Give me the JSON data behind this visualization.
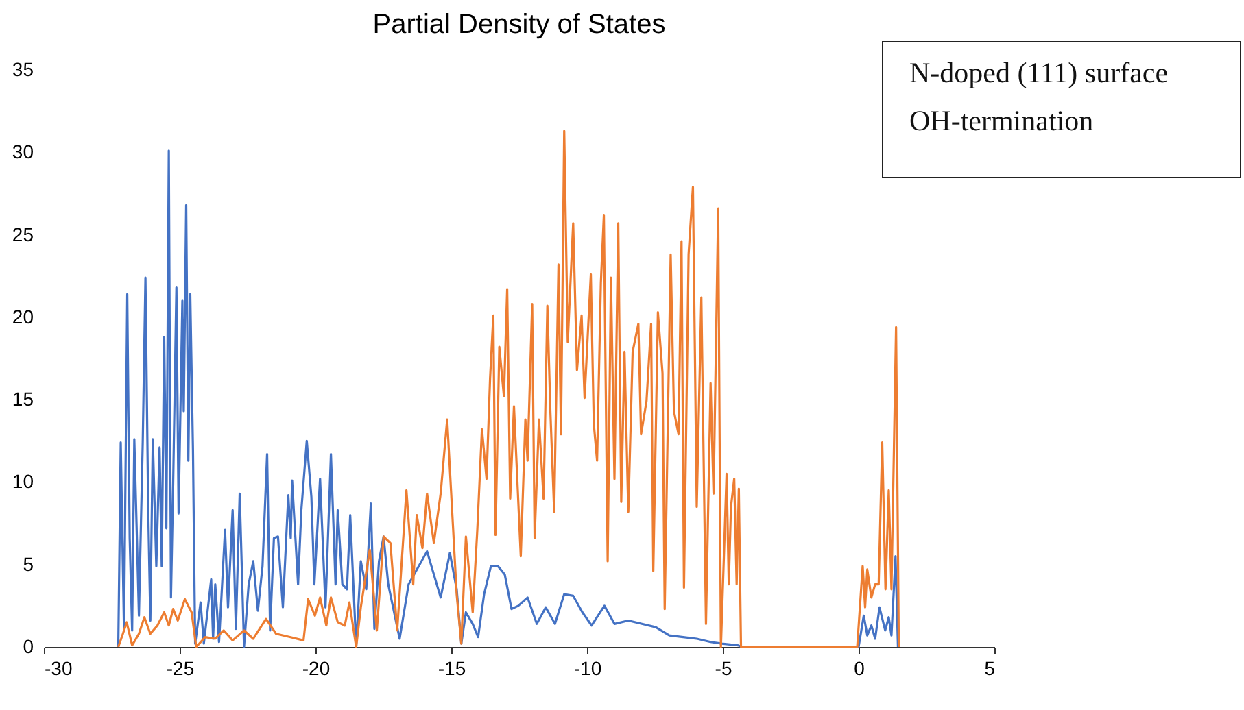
{
  "chart_data": {
    "type": "line",
    "title": "Partial Density of States",
    "annotations": [
      "N-doped (111) surface",
      "OH-termination"
    ],
    "xlim": [
      -30,
      5
    ],
    "xticks": [
      -30,
      -25,
      -20,
      -15,
      -10,
      -5,
      0,
      5
    ],
    "ylim": [
      0,
      35
    ],
    "yticks": [
      0,
      5,
      10,
      15,
      20,
      25,
      30,
      35
    ],
    "series": [
      {
        "color": "#4472c4",
        "x": [
          -27.26,
          -27.17,
          -27.05,
          -26.93,
          -26.84,
          -26.75,
          -26.67,
          -26.5,
          -26.36,
          -26.26,
          -26.16,
          -26.08,
          -25.99,
          -25.86,
          -25.74,
          -25.66,
          -25.57,
          -25.49,
          -25.4,
          -25.32,
          -25.24,
          -25.12,
          -25.04,
          -24.9,
          -24.85,
          -24.76,
          -24.68,
          -24.61,
          -24.51,
          -24.43,
          -24.23,
          -24.11,
          -23.84,
          -23.77,
          -23.69,
          -23.55,
          -23.33,
          -23.22,
          -23.05,
          -22.93,
          -22.79,
          -22.63,
          -22.46,
          -22.29,
          -22.12,
          -21.95,
          -21.78,
          -21.67,
          -21.53,
          -21.38,
          -21.2,
          -21.0,
          -20.91,
          -20.86,
          -20.64,
          -20.52,
          -20.32,
          -20.15,
          -20.04,
          -19.83,
          -19.63,
          -19.43,
          -19.26,
          -19.18,
          -19.01,
          -18.84,
          -18.72,
          -18.5,
          -18.33,
          -18.13,
          -17.96,
          -17.83,
          -17.66,
          -17.49,
          -17.32,
          -16.9,
          -16.57,
          -15.89,
          -15.39,
          -15.05,
          -14.8,
          -14.63,
          -14.46,
          -14.21,
          -14.01,
          -13.79,
          -13.54,
          -13.28,
          -13.03,
          -12.78,
          -12.53,
          -12.19,
          -11.85,
          -11.52,
          -11.18,
          -10.84,
          -10.51,
          -10.17,
          -9.83,
          -9.36,
          -8.99,
          -8.48,
          -7.98,
          -7.47,
          -6.97,
          -6.46,
          -5.96,
          -5.45,
          -5.04,
          -4.44,
          -4.3,
          0.0,
          0.1,
          0.19,
          0.32,
          0.47,
          0.61,
          0.77,
          0.98,
          1.11,
          1.21,
          1.36,
          1.45
        ],
        "values": [
          0,
          12.4,
          1,
          21.4,
          6.6,
          1,
          12.6,
          1.9,
          12.4,
          22.4,
          8.5,
          1.6,
          12.6,
          4.9,
          12.1,
          4.9,
          18.8,
          7.2,
          30.1,
          3,
          9.9,
          21.8,
          8.1,
          21,
          14.3,
          26.8,
          11.3,
          21.4,
          11.9,
          0.2,
          2.7,
          0.2,
          4.1,
          0.5,
          3.8,
          0.3,
          7.1,
          2.4,
          8.3,
          1.1,
          9.3,
          0,
          3.8,
          5.2,
          2.2,
          4.9,
          11.7,
          1,
          6.6,
          6.7,
          2.4,
          9.2,
          6.6,
          10.1,
          3.8,
          8.3,
          12.5,
          9.1,
          3.8,
          10.2,
          2.4,
          11.7,
          3.8,
          8.3,
          3.8,
          3.5,
          8,
          0,
          5.2,
          3.5,
          8.7,
          1.1,
          5.2,
          6.7,
          3.8,
          0.5,
          3.8,
          5.8,
          3,
          5.7,
          3.5,
          0.2,
          2.1,
          1.4,
          0.6,
          3.2,
          4.9,
          4.9,
          4.4,
          2.3,
          2.5,
          3,
          1.4,
          2.4,
          1.4,
          3.2,
          3.1,
          2.1,
          1.3,
          2.5,
          1.4,
          1.6,
          1.4,
          1.2,
          0.7,
          0.6,
          0.5,
          0.3,
          0.2,
          0.1,
          0,
          0,
          1,
          1.9,
          0.7,
          1.3,
          0.5,
          2.4,
          1,
          1.8,
          0.7,
          5.5,
          0
        ]
      },
      {
        "color": "#ed7d31",
        "x": [
          -27.26,
          -27.09,
          -26.95,
          -26.75,
          -26.5,
          -26.3,
          -26.08,
          -25.82,
          -25.57,
          -25.4,
          -25.24,
          -25.07,
          -24.81,
          -24.56,
          -24.39,
          -24.06,
          -23.69,
          -23.38,
          -23.05,
          -22.63,
          -22.29,
          -21.82,
          -21.45,
          -20.94,
          -20.44,
          -20.27,
          -20.02,
          -19.83,
          -19.6,
          -19.43,
          -19.18,
          -18.92,
          -18.75,
          -18.5,
          -18.33,
          -18.0,
          -17.74,
          -17.49,
          -17.24,
          -16.99,
          -16.65,
          -16.4,
          -16.27,
          -16.06,
          -15.89,
          -15.64,
          -15.39,
          -15.15,
          -14.8,
          -14.63,
          -14.46,
          -14.21,
          -14.04,
          -13.87,
          -13.7,
          -13.57,
          -13.45,
          -13.37,
          -13.23,
          -13.06,
          -12.94,
          -12.83,
          -12.69,
          -12.44,
          -12.27,
          -12.19,
          -12.02,
          -11.93,
          -11.77,
          -11.6,
          -11.46,
          -11.35,
          -11.21,
          -11.05,
          -10.96,
          -10.84,
          -10.71,
          -10.51,
          -10.37,
          -10.2,
          -10.09,
          -9.86,
          -9.75,
          -9.63,
          -9.49,
          -9.38,
          -9.24,
          -9.12,
          -8.99,
          -8.85,
          -8.74,
          -8.62,
          -8.48,
          -8.32,
          -8.11,
          -8.01,
          -7.81,
          -7.64,
          -7.56,
          -7.39,
          -7.22,
          -7.14,
          -6.92,
          -6.8,
          -6.63,
          -6.52,
          -6.43,
          -6.26,
          -6.1,
          -5.96,
          -5.79,
          -5.62,
          -5.45,
          -5.34,
          -5.17,
          -5.07,
          -4.86,
          -4.78,
          -4.7,
          -4.58,
          -4.49,
          -4.41,
          -4.33,
          -0.05,
          0.15,
          0.24,
          0.32,
          0.47,
          0.61,
          0.74,
          0.87,
          0.99,
          1.11,
          1.21,
          1.38,
          1.48
        ],
        "values": [
          0,
          0.8,
          1.5,
          0.1,
          0.8,
          1.8,
          0.8,
          1.3,
          2.1,
          1.3,
          2.3,
          1.6,
          2.9,
          2.1,
          0,
          0.6,
          0.5,
          1,
          0.4,
          1,
          0.5,
          1.7,
          0.8,
          0.6,
          0.4,
          2.9,
          1.9,
          3,
          1.3,
          3,
          1.5,
          1.3,
          2.7,
          0,
          2.4,
          5.9,
          1,
          6.7,
          6.3,
          1,
          9.5,
          3.8,
          8,
          6,
          9.3,
          6.3,
          9.3,
          13.8,
          3.2,
          0.2,
          6.7,
          2.1,
          7.1,
          13.2,
          10.2,
          16.3,
          20.1,
          6.8,
          18.2,
          15.2,
          21.7,
          9,
          14.6,
          5.5,
          13.8,
          11.3,
          20.8,
          6.6,
          13.8,
          9,
          20.7,
          14.3,
          8.2,
          23.2,
          12.9,
          31.3,
          18.5,
          25.7,
          16.8,
          20.1,
          15.1,
          22.6,
          13.5,
          11.3,
          22.1,
          26.2,
          5.2,
          22.4,
          10.2,
          25.7,
          8.8,
          17.9,
          8.2,
          17.9,
          19.6,
          12.9,
          14.9,
          19.6,
          4.6,
          20.3,
          16.6,
          2.3,
          23.8,
          14.3,
          12.9,
          24.6,
          3.6,
          23.8,
          27.9,
          8.5,
          21.2,
          1.4,
          16,
          9.3,
          26.6,
          0,
          10.5,
          3.8,
          8.5,
          10.2,
          3.8,
          9.6,
          0,
          0,
          4.9,
          2.4,
          4.7,
          3,
          3.8,
          3.8,
          12.4,
          3.5,
          9.5,
          3.5,
          19.4,
          0
        ]
      }
    ]
  }
}
